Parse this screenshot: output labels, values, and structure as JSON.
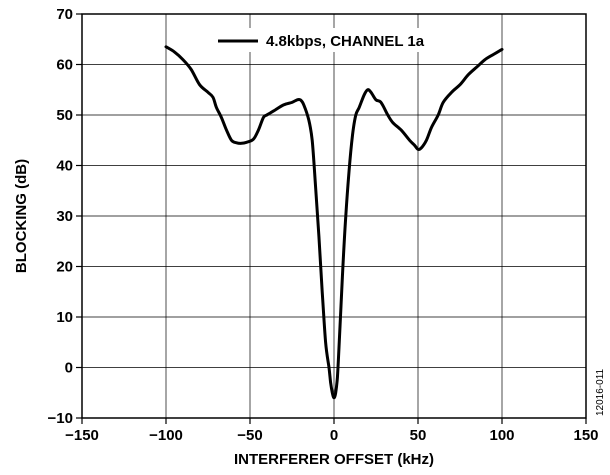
{
  "chart_data": {
    "type": "line",
    "xlabel": "INTERFERER OFFSET (kHz)",
    "ylabel": "BLOCKING (dB)",
    "xlim": [
      -150,
      150
    ],
    "ylim": [
      -10,
      70
    ],
    "xticks": [
      -150,
      -100,
      -50,
      0,
      50,
      100,
      150
    ],
    "yticks": [
      -10,
      0,
      10,
      20,
      30,
      40,
      50,
      60,
      70
    ],
    "grid": true,
    "legend_position": "top-center",
    "series": [
      {
        "name": "4.8kbps, CHANNEL 1a",
        "color": "#000000",
        "x": [
          -100,
          -95,
          -90,
          -85,
          -80,
          -75,
          -72,
          -70,
          -67,
          -64,
          -61,
          -58,
          -55,
          -52,
          -48,
          -45,
          -42,
          -40,
          -38,
          -35,
          -30,
          -25,
          -22,
          -20,
          -18,
          -15,
          -13,
          -11,
          -9,
          -7,
          -5,
          -3,
          -2,
          -1,
          0,
          1,
          2,
          3,
          5,
          7,
          9,
          11,
          13,
          15,
          18,
          20,
          22,
          25,
          28,
          32,
          35,
          40,
          45,
          48,
          50,
          52,
          55,
          58,
          62,
          65,
          70,
          75,
          80,
          85,
          90,
          95,
          100
        ],
        "y": [
          63.5,
          62.5,
          61,
          59,
          56,
          54.5,
          53.5,
          51.5,
          49.5,
          47,
          45,
          44.5,
          44.4,
          44.6,
          45.2,
          47,
          49.5,
          50,
          50.4,
          51,
          52,
          52.5,
          53,
          53,
          52,
          49,
          45,
          36,
          26,
          15,
          5,
          0,
          -3,
          -5,
          -6,
          -5,
          -2,
          4,
          18,
          30,
          39,
          46,
          50,
          51.5,
          54,
          55,
          54.5,
          53,
          52.5,
          50,
          48.5,
          47,
          45,
          44,
          43.2,
          43.5,
          45,
          47.5,
          50,
          52.5,
          54.5,
          56,
          58,
          59.5,
          61,
          62,
          63
        ]
      }
    ],
    "annotations": [
      "12016-011"
    ]
  }
}
